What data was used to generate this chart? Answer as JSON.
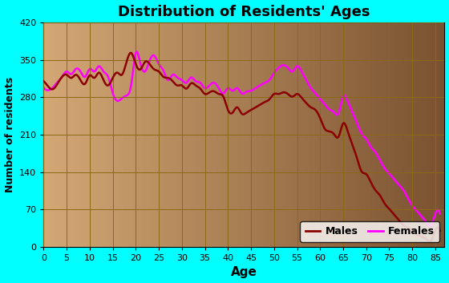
{
  "title": "Distribution of Residents' Ages",
  "xlabel": "Age",
  "ylabel": "Number of residents",
  "background_outer": "#00FFFF",
  "background_inner_left": "#D4A875",
  "background_inner_right": "#7A5230",
  "grid_color": "#8B6914",
  "ylim": [
    0,
    420
  ],
  "xlim": [
    0,
    87
  ],
  "yticks": [
    0,
    70,
    140,
    210,
    280,
    350,
    420
  ],
  "xticks": [
    0,
    5,
    10,
    15,
    20,
    25,
    30,
    35,
    40,
    45,
    50,
    55,
    60,
    65,
    70,
    75,
    80,
    85
  ],
  "males_ages": [
    0,
    1,
    2,
    3,
    4,
    5,
    6,
    7,
    8,
    9,
    10,
    11,
    12,
    13,
    14,
    15,
    16,
    17,
    18,
    19,
    20,
    21,
    22,
    23,
    24,
    25,
    26,
    27,
    28,
    29,
    30,
    31,
    32,
    33,
    34,
    35,
    36,
    37,
    38,
    39,
    40,
    41,
    42,
    43,
    44,
    45,
    46,
    47,
    48,
    49,
    50,
    51,
    52,
    53,
    54,
    55,
    56,
    57,
    58,
    59,
    60,
    61,
    62,
    63,
    64,
    65,
    66,
    67,
    68,
    69,
    70,
    71,
    72,
    73,
    74,
    75,
    76,
    77,
    78,
    79,
    80,
    81,
    82,
    83,
    84,
    85,
    86
  ],
  "males_values": [
    310,
    300,
    295,
    305,
    318,
    322,
    316,
    322,
    312,
    305,
    321,
    316,
    326,
    312,
    302,
    316,
    326,
    322,
    346,
    363,
    342,
    332,
    346,
    342,
    332,
    328,
    318,
    316,
    310,
    302,
    302,
    296,
    306,
    302,
    296,
    286,
    289,
    291,
    286,
    281,
    256,
    251,
    261,
    249,
    251,
    256,
    261,
    266,
    271,
    276,
    286,
    286,
    289,
    286,
    281,
    286,
    279,
    269,
    261,
    256,
    241,
    221,
    216,
    211,
    206,
    231,
    216,
    191,
    166,
    141,
    136,
    121,
    106,
    96,
    81,
    71,
    61,
    51,
    41,
    36,
    31,
    23,
    19,
    15,
    11,
    30,
    30
  ],
  "females_ages": [
    0,
    1,
    2,
    3,
    4,
    5,
    6,
    7,
    8,
    9,
    10,
    11,
    12,
    13,
    14,
    15,
    16,
    17,
    18,
    19,
    20,
    21,
    22,
    23,
    24,
    25,
    26,
    27,
    28,
    29,
    30,
    31,
    32,
    33,
    34,
    35,
    36,
    37,
    38,
    39,
    40,
    41,
    42,
    43,
    44,
    45,
    46,
    47,
    48,
    49,
    50,
    51,
    52,
    53,
    54,
    55,
    56,
    57,
    58,
    59,
    60,
    61,
    62,
    63,
    64,
    65,
    66,
    67,
    68,
    69,
    70,
    71,
    72,
    73,
    74,
    75,
    76,
    77,
    78,
    79,
    80,
    81,
    82,
    83,
    84,
    85,
    86
  ],
  "females_values": [
    298,
    293,
    298,
    308,
    318,
    328,
    323,
    333,
    328,
    318,
    333,
    328,
    338,
    328,
    318,
    288,
    273,
    278,
    283,
    303,
    363,
    343,
    328,
    348,
    358,
    342,
    330,
    312,
    322,
    317,
    312,
    307,
    317,
    310,
    307,
    297,
    302,
    307,
    297,
    287,
    297,
    292,
    297,
    287,
    290,
    292,
    297,
    302,
    307,
    312,
    325,
    335,
    340,
    335,
    328,
    338,
    328,
    312,
    297,
    287,
    277,
    267,
    257,
    252,
    250,
    282,
    272,
    252,
    232,
    212,
    202,
    187,
    177,
    162,
    147,
    137,
    127,
    117,
    107,
    92,
    77,
    67,
    57,
    47,
    40,
    62,
    62
  ],
  "males_color": "#8B0000",
  "females_color": "#FF00FF",
  "legend_bg": "#FFFFFF",
  "legend_border": "#000000"
}
